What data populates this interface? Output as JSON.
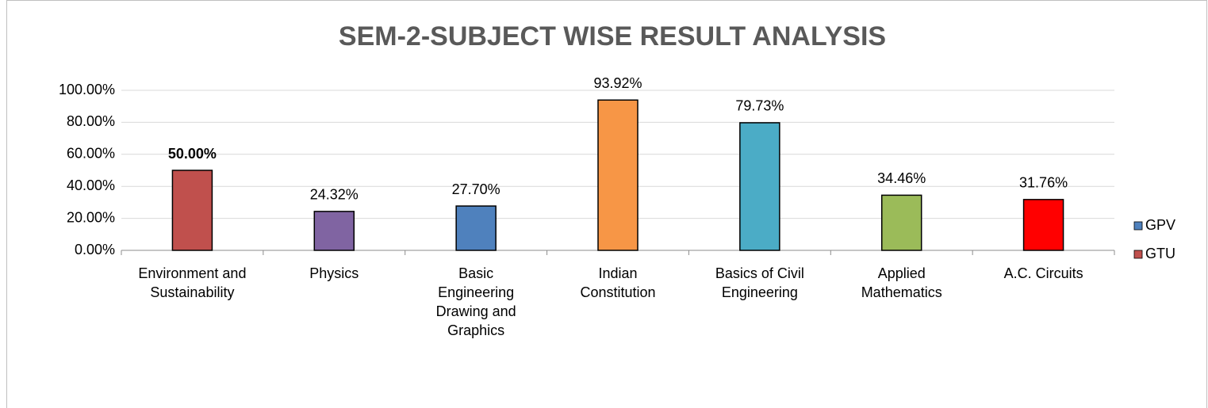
{
  "chart_data": {
    "type": "bar",
    "title": "SEM-2-SUBJECT WISE RESULT ANALYSIS",
    "categories": [
      "Environment and Sustainability",
      "Physics",
      "Basic Engineering Drawing and Graphics",
      "Indian Constitution",
      "Basics of Civil Engineering",
      "Applied Mathematics",
      "A.C. Circuits"
    ],
    "values": [
      50,
      24.32,
      27.7,
      93.92,
      79.73,
      34.46,
      31.76
    ],
    "value_labels": [
      "50.00%",
      "24.32%",
      "27.70%",
      "93.92%",
      "79.73%",
      "34.46%",
      "31.76%"
    ],
    "bold_value_labels": [
      true,
      false,
      false,
      false,
      false,
      false,
      false
    ],
    "colors": [
      "#c0504d",
      "#8064a2",
      "#4f81bd",
      "#f79646",
      "#4bacc6",
      "#9bbb59",
      "#ff0000"
    ],
    "legend": [
      {
        "name": "GPV",
        "color": "#4f81bd"
      },
      {
        "name": "GTU",
        "color": "#c0504d"
      }
    ],
    "legend_position": "right",
    "ylim": [
      0,
      100
    ],
    "yticks": [
      {
        "value": 0,
        "label": "0.00%"
      },
      {
        "value": 20,
        "label": "20.00%"
      },
      {
        "value": 40,
        "label": "40.00%"
      },
      {
        "value": 60,
        "label": "60.00%"
      },
      {
        "value": 80,
        "label": "80.00%"
      },
      {
        "value": 100,
        "label": "100.00%"
      }
    ],
    "grid": true
  }
}
